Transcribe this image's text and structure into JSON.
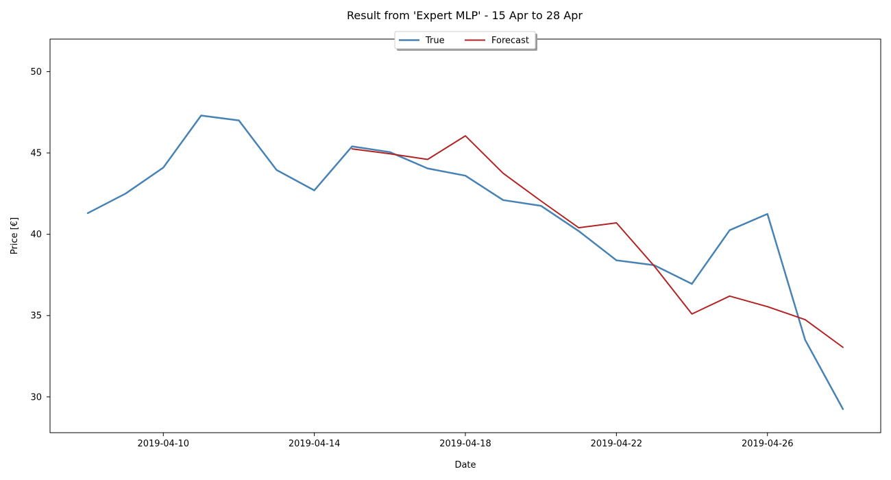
{
  "chart_data": {
    "type": "line",
    "title": "Result from 'Expert MLP' - 15 Apr to 28 Apr",
    "xlabel": "Date",
    "ylabel": "Price [€]",
    "xlim": [
      "2019-04-07",
      "2019-04-29"
    ],
    "ylim": [
      27.8,
      52
    ],
    "x_ticks": [
      "2019-04-10",
      "2019-04-14",
      "2019-04-18",
      "2019-04-22",
      "2019-04-26"
    ],
    "y_ticks": [
      30,
      35,
      40,
      45,
      50
    ],
    "grid": false,
    "legend_position": "top-center",
    "series": [
      {
        "name": "True",
        "color": "#4682b4",
        "x": [
          "2019-04-08",
          "2019-04-09",
          "2019-04-10",
          "2019-04-11",
          "2019-04-12",
          "2019-04-13",
          "2019-04-14",
          "2019-04-15",
          "2019-04-16",
          "2019-04-17",
          "2019-04-18",
          "2019-04-19",
          "2019-04-20",
          "2019-04-21",
          "2019-04-22",
          "2019-04-23",
          "2019-04-24",
          "2019-04-25",
          "2019-04-26",
          "2019-04-27",
          "2019-04-28"
        ],
        "values": [
          41.3,
          42.5,
          44.1,
          47.3,
          47.0,
          43.95,
          42.7,
          45.4,
          45.05,
          44.05,
          43.6,
          42.1,
          41.75,
          40.2,
          38.4,
          38.1,
          36.95,
          40.25,
          41.25,
          33.5,
          29.25
        ]
      },
      {
        "name": "Forecast",
        "color": "#b22222",
        "x": [
          "2019-04-15",
          "2019-04-16",
          "2019-04-17",
          "2019-04-18",
          "2019-04-19",
          "2019-04-20",
          "2019-04-21",
          "2019-04-22",
          "2019-04-23",
          "2019-04-24",
          "2019-04-25",
          "2019-04-26",
          "2019-04-27",
          "2019-04-28"
        ],
        "values": [
          45.25,
          44.95,
          44.6,
          46.05,
          43.75,
          42.05,
          40.4,
          40.7,
          38.05,
          35.1,
          36.2,
          35.55,
          34.75,
          33.05
        ]
      }
    ]
  }
}
